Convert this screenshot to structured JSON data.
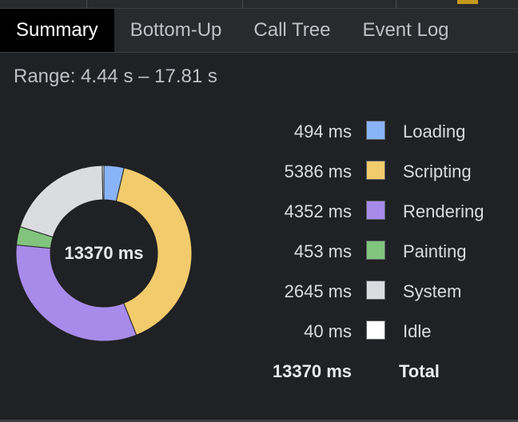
{
  "tabs": [
    {
      "label": "Summary",
      "active": true
    },
    {
      "label": "Bottom-Up",
      "active": false
    },
    {
      "label": "Call Tree",
      "active": false
    },
    {
      "label": "Event Log",
      "active": false
    }
  ],
  "range": "Range: 4.44 s – 17.81 s",
  "total": {
    "value": "13370 ms",
    "label": "Total"
  },
  "categories": [
    {
      "value": "494 ms",
      "ms": 494,
      "label": "Loading",
      "color": "#8ab4f8"
    },
    {
      "value": "5386 ms",
      "ms": 5386,
      "label": "Scripting",
      "color": "#f2cb6c"
    },
    {
      "value": "4352 ms",
      "ms": 4352,
      "label": "Rendering",
      "color": "#a78bea"
    },
    {
      "value": "453 ms",
      "ms": 453,
      "label": "Painting",
      "color": "#81c47d"
    },
    {
      "value": "2645 ms",
      "ms": 2645,
      "label": "System",
      "color": "#dadce0"
    },
    {
      "value": "40 ms",
      "ms": 40,
      "label": "Idle",
      "color": "#ffffff"
    }
  ]
}
